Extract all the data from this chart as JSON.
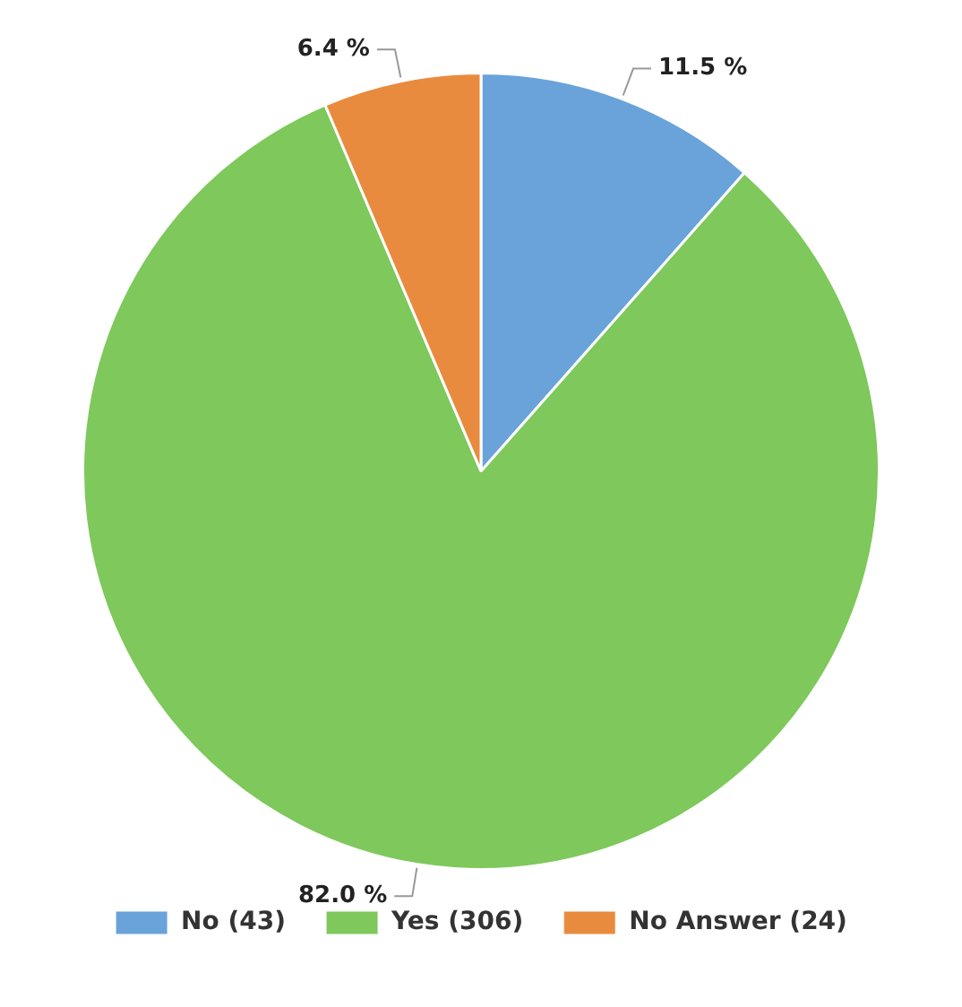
{
  "chart_data": {
    "type": "pie",
    "categories": [
      "No (43)",
      "Yes (306)",
      "No Answer (24)"
    ],
    "values": [
      11.5,
      82.0,
      6.4
    ],
    "value_labels": [
      "11.5 %",
      "82.0 %",
      "6.4 %"
    ],
    "colors": [
      "#69a3d9",
      "#7ec85c",
      "#e98b3f"
    ],
    "legend": "bottom"
  }
}
